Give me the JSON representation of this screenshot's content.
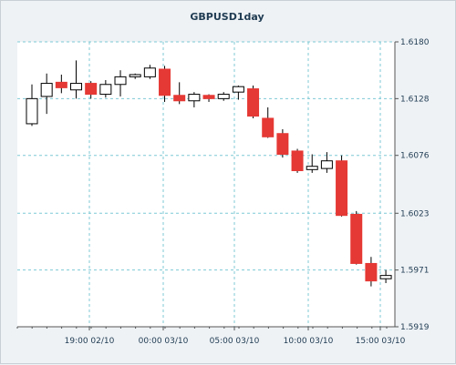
{
  "colors": {
    "background": "#eef2f5",
    "plot_background": "#ffffff",
    "grid": "#7fc9d6",
    "bull_fill": "#ffffff",
    "bear_fill": "#e53935",
    "candle_outline": "#000000",
    "wick": "#000000",
    "text": "#1f3b52"
  },
  "chart_data": {
    "type": "candlestick",
    "title": "GBPUSD1day",
    "ylim": [
      1.5919,
      1.618
    ],
    "y_ticks": [
      "1.6180",
      "1.6128",
      "1.6076",
      "1.6023",
      "1.5971",
      "1.5919"
    ],
    "x_ticks": [
      "19:00 02/10",
      "00:00 03/10",
      "05:00 03/10",
      "10:00 03/10",
      "15:00 03/10"
    ],
    "grid": true,
    "candles": [
      {
        "o": 1.6105,
        "h": 1.6141,
        "l": 1.6103,
        "c": 1.6128
      },
      {
        "o": 1.613,
        "h": 1.6151,
        "l": 1.6114,
        "c": 1.6142
      },
      {
        "o": 1.6143,
        "h": 1.615,
        "l": 1.6133,
        "c": 1.6138
      },
      {
        "o": 1.6136,
        "h": 1.6163,
        "l": 1.6128,
        "c": 1.6142
      },
      {
        "o": 1.6142,
        "h": 1.6144,
        "l": 1.6128,
        "c": 1.6132
      },
      {
        "o": 1.6132,
        "h": 1.6145,
        "l": 1.6129,
        "c": 1.6141
      },
      {
        "o": 1.6141,
        "h": 1.6154,
        "l": 1.613,
        "c": 1.6148
      },
      {
        "o": 1.6148,
        "h": 1.6151,
        "l": 1.6146,
        "c": 1.615
      },
      {
        "o": 1.6148,
        "h": 1.6159,
        "l": 1.6146,
        "c": 1.6156
      },
      {
        "o": 1.6155,
        "h": 1.6158,
        "l": 1.6125,
        "c": 1.6131
      },
      {
        "o": 1.6131,
        "h": 1.6143,
        "l": 1.6123,
        "c": 1.6126
      },
      {
        "o": 1.6126,
        "h": 1.6134,
        "l": 1.612,
        "c": 1.6132
      },
      {
        "o": 1.6131,
        "h": 1.6132,
        "l": 1.6125,
        "c": 1.6128
      },
      {
        "o": 1.6128,
        "h": 1.6134,
        "l": 1.6126,
        "c": 1.6132
      },
      {
        "o": 1.6134,
        "h": 1.614,
        "l": 1.6127,
        "c": 1.6139
      },
      {
        "o": 1.6137,
        "h": 1.614,
        "l": 1.611,
        "c": 1.6112
      },
      {
        "o": 1.611,
        "h": 1.612,
        "l": 1.6092,
        "c": 1.6093
      },
      {
        "o": 1.6096,
        "h": 1.61,
        "l": 1.6074,
        "c": 1.6077
      },
      {
        "o": 1.608,
        "h": 1.6082,
        "l": 1.606,
        "c": 1.6062
      },
      {
        "o": 1.6063,
        "h": 1.6077,
        "l": 1.606,
        "c": 1.6066
      },
      {
        "o": 1.6064,
        "h": 1.6079,
        "l": 1.606,
        "c": 1.6071
      },
      {
        "o": 1.6071,
        "h": 1.6076,
        "l": 1.602,
        "c": 1.6021
      },
      {
        "o": 1.6022,
        "h": 1.6025,
        "l": 1.5976,
        "c": 1.5977
      },
      {
        "o": 1.5977,
        "h": 1.5983,
        "l": 1.5956,
        "c": 1.5961
      },
      {
        "o": 1.5963,
        "h": 1.5971,
        "l": 1.5959,
        "c": 1.5966
      }
    ]
  }
}
